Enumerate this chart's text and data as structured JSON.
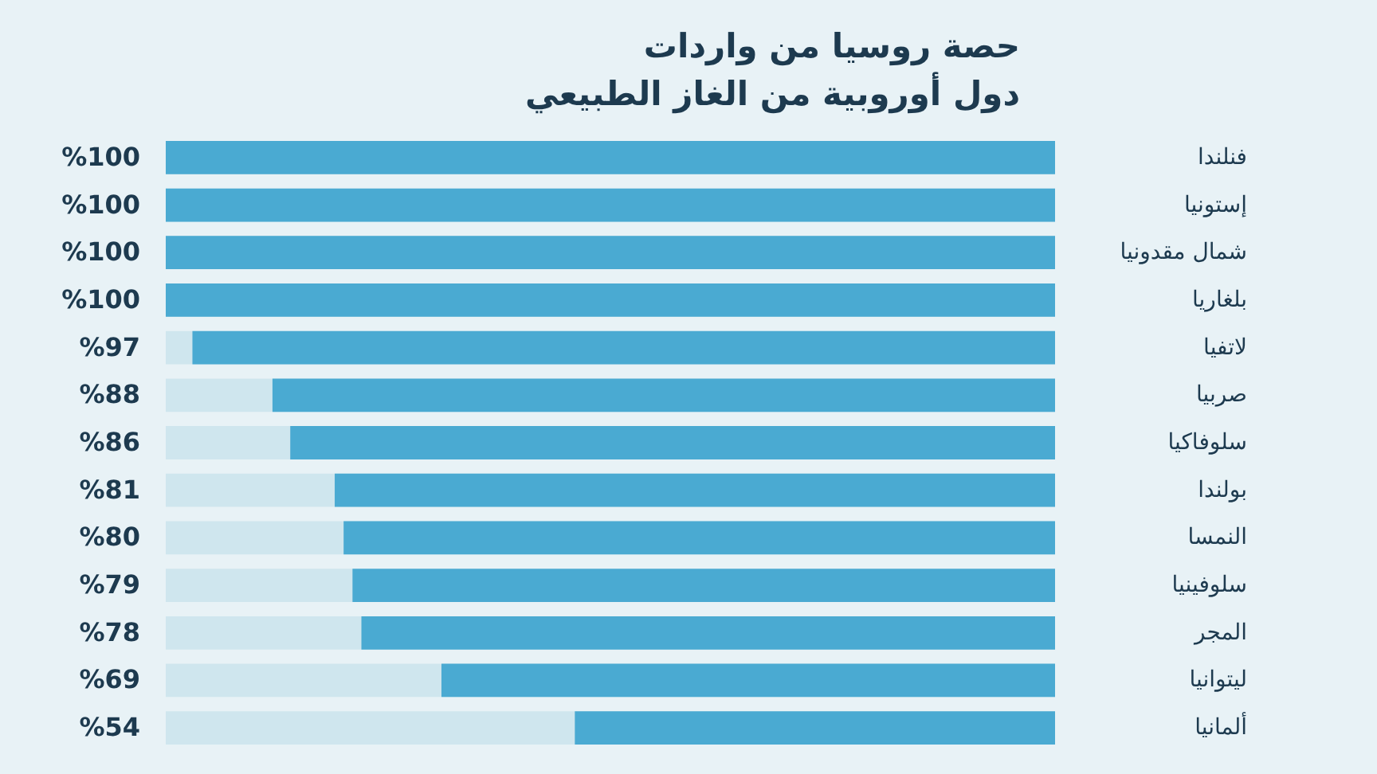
{
  "chart_data": {
    "type": "bar",
    "orientation": "horizontal",
    "title": "حصة روسيا من واردات\nدول أوروبية من الغاز الطبيعي",
    "categories": [
      "فنلندا",
      "إستونيا",
      "شمال مقدونيا",
      "بلغاريا",
      "لاتفيا",
      "صربيا",
      "سلوفاكيا",
      "بولندا",
      "النمسا",
      "سلوفينيا",
      "المجر",
      "ليتوانيا",
      "ألمانيا"
    ],
    "values": [
      100,
      100,
      100,
      100,
      97,
      88,
      86,
      81,
      80,
      79,
      78,
      69,
      54
    ],
    "value_labels": [
      "%100",
      "%100",
      "%100",
      "%100",
      "%97",
      "%88",
      "%86",
      "%81",
      "%80",
      "%79",
      "%78",
      "%69",
      "%54"
    ],
    "color": "#4aaad2",
    "xlim": [
      100,
      0
    ],
    "tick_labels": "y"
  }
}
